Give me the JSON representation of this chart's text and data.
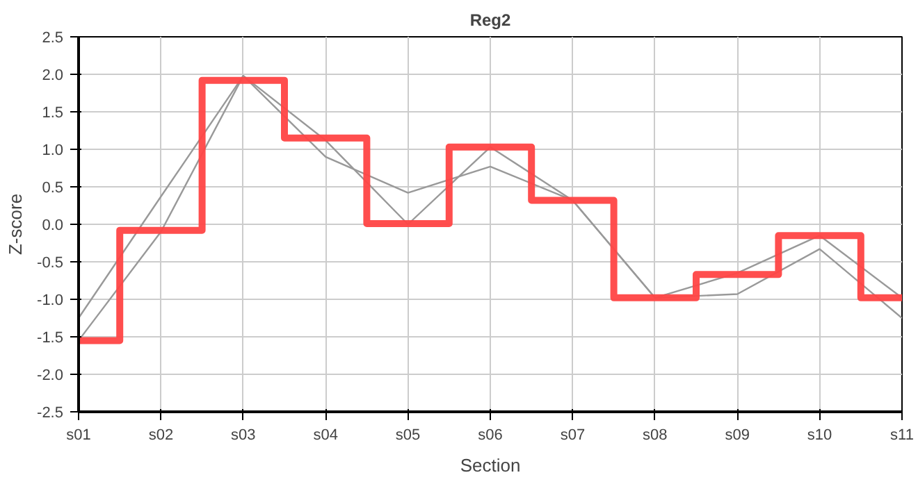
{
  "chart_data": {
    "type": "line",
    "title": "Reg2",
    "xlabel": "Section",
    "ylabel": "Z-score",
    "categories": [
      "s01",
      "s02",
      "s03",
      "s04",
      "s05",
      "s06",
      "s07",
      "s08",
      "s09",
      "s10",
      "s11"
    ],
    "series": [
      {
        "color": "#999999",
        "values": [
          -1.25,
          0.37,
          1.98,
          0.9,
          0.42,
          0.77,
          0.32,
          -0.98,
          -0.93,
          -0.33,
          -1.25
        ]
      },
      {
        "color": "#999999",
        "values": [
          -1.55,
          -0.1,
          1.98,
          1.12,
          0.0,
          1.03,
          0.32,
          -0.98,
          -0.65,
          -0.15,
          -0.98
        ]
      },
      {
        "type": "step",
        "color": "#ff4444",
        "values": [
          -1.55,
          -0.08,
          1.92,
          1.15,
          0.01,
          1.03,
          0.32,
          -0.98,
          -0.67,
          -0.15,
          -0.98
        ]
      }
    ],
    "ylim": [
      -2.5,
      2.5
    ],
    "yticks": [
      {
        "value": -2.5,
        "label": "-2.5"
      },
      {
        "value": -2,
        "label": "-2.0"
      },
      {
        "value": -1.5,
        "label": "-1.5"
      },
      {
        "value": -1,
        "label": "-1.0"
      },
      {
        "value": -0.5,
        "label": "-0.5"
      },
      {
        "value": 0,
        "label": "0.0"
      },
      {
        "value": 0.5,
        "label": "0.5"
      },
      {
        "value": 1,
        "label": "1.0"
      },
      {
        "value": 1.5,
        "label": "1.5"
      },
      {
        "value": 2,
        "label": "2.0"
      },
      {
        "value": 2.5,
        "label": "2.5"
      }
    ],
    "grid": true,
    "marker": "none",
    "line_style": "solid"
  }
}
